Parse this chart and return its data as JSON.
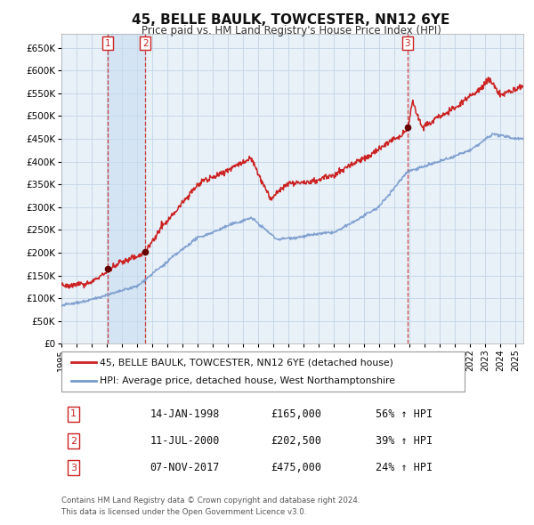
{
  "title": "45, BELLE BAULK, TOWCESTER, NN12 6YE",
  "subtitle": "Price paid vs. HM Land Registry's House Price Index (HPI)",
  "title_fontsize": 11,
  "subtitle_fontsize": 9,
  "legend_line1": "45, BELLE BAULK, TOWCESTER, NN12 6YE (detached house)",
  "legend_line2": "HPI: Average price, detached house, West Northamptonshire",
  "footer1": "Contains HM Land Registry data © Crown copyright and database right 2024.",
  "footer2": "This data is licensed under the Open Government Licence v3.0.",
  "grid_color": "#c8d8e8",
  "plot_bg": "#e8f0f8",
  "sale_color": "#cc2222",
  "hpi_color": "#7799cc",
  "sale_marker_color": "#660000",
  "vline_color": "#cc2222",
  "shade_color": "#d0e0f0",
  "ylim": [
    0,
    680000
  ],
  "ytick_step": 50000,
  "transactions": [
    {
      "label": "1",
      "date_num": 1998.04,
      "price": 165000,
      "text": "14-JAN-1998",
      "price_text": "£165,000",
      "hpi_text": "56% ↑ HPI"
    },
    {
      "label": "2",
      "date_num": 2000.53,
      "price": 202500,
      "text": "11-JUL-2000",
      "price_text": "£202,500",
      "hpi_text": "39% ↑ HPI"
    },
    {
      "label": "3",
      "date_num": 2017.85,
      "price": 475000,
      "text": "07-NOV-2017",
      "price_text": "£475,000",
      "hpi_text": "24% ↑ HPI"
    }
  ],
  "shade_between": [
    1998.04,
    2000.53
  ],
  "xmin": 1995.0,
  "xmax": 2025.5
}
